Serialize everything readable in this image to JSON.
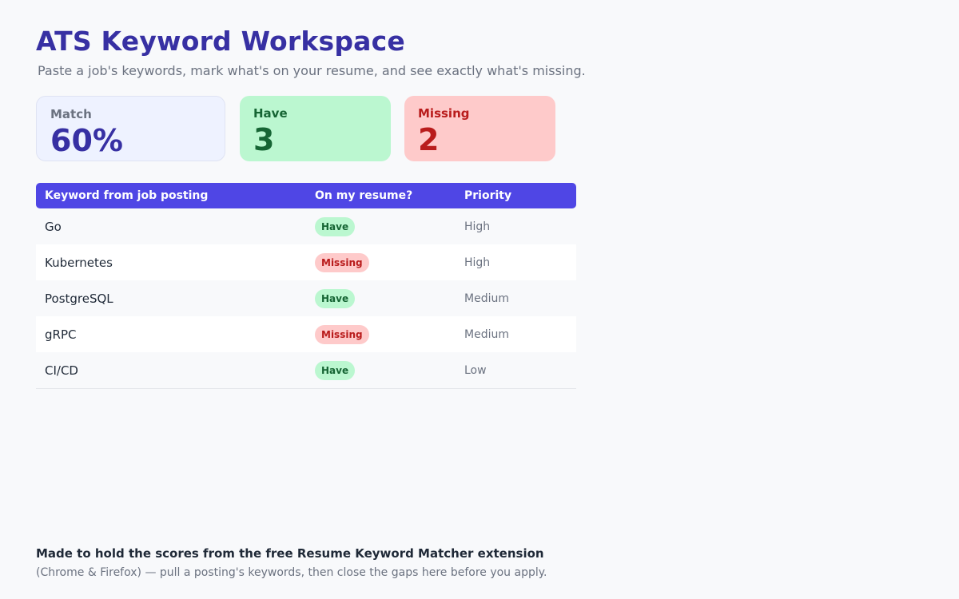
{
  "header": {
    "title": "ATS Keyword Workspace",
    "subtitle": "Paste a job's keywords, mark what's on your resume, and see exactly what's missing."
  },
  "stats": {
    "match": {
      "label": "Match",
      "value": "60%"
    },
    "have": {
      "label": "Have",
      "value": "3"
    },
    "missing": {
      "label": "Missing",
      "value": "2"
    }
  },
  "table": {
    "columns": [
      "Keyword from job posting",
      "On my resume?",
      "Priority"
    ],
    "rows": [
      {
        "keyword": "Go",
        "status": "Have",
        "priority": "High"
      },
      {
        "keyword": "Kubernetes",
        "status": "Missing",
        "priority": "High"
      },
      {
        "keyword": "PostgreSQL",
        "status": "Have",
        "priority": "Medium"
      },
      {
        "keyword": "gRPC",
        "status": "Missing",
        "priority": "Medium"
      },
      {
        "keyword": "CI/CD",
        "status": "Have",
        "priority": "Low"
      }
    ]
  },
  "footer": {
    "title": "Made to hold the scores from the free Resume Keyword Matcher extension",
    "text": "(Chrome & Firefox) — pull a posting's keywords, then close the gaps here before you apply."
  },
  "colors": {
    "accent": "#4f46e5",
    "title": "#3730a3",
    "have_bg": "#bbf7d0",
    "have_text": "#166534",
    "missing_bg": "#fecaca",
    "missing_text": "#b91c1c"
  }
}
